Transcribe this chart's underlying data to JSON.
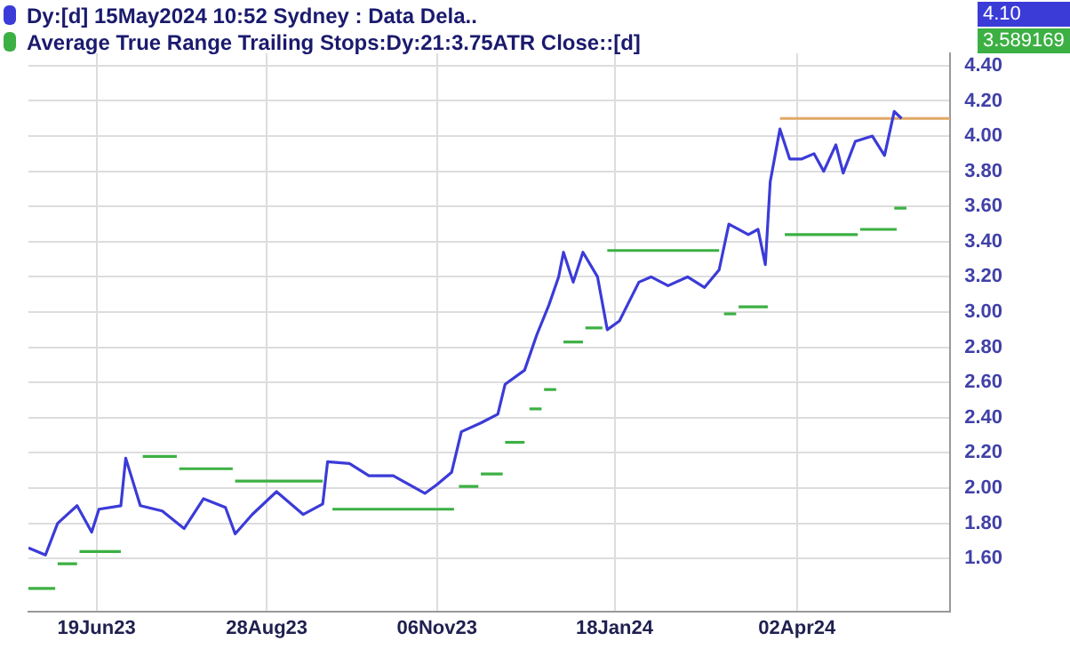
{
  "chart_data": {
    "type": "line",
    "legend": "top left",
    "grid": true,
    "marker": "none",
    "xlim": [
      "2023-05-22",
      "2024-06-04"
    ],
    "xticks": [
      {
        "value": "2023-06-19",
        "label": "19Jun23"
      },
      {
        "value": "2023-08-28",
        "label": "28Aug23"
      },
      {
        "value": "2023-11-06",
        "label": "06Nov23"
      },
      {
        "value": "2024-01-18",
        "label": "18Jan24"
      },
      {
        "value": "2024-04-02",
        "label": "02Apr24"
      }
    ],
    "ylim": [
      1.3,
      4.47
    ],
    "yticks": [
      {
        "value": 1.6,
        "label": "1.60"
      },
      {
        "value": 1.8,
        "label": "1.80"
      },
      {
        "value": 2.0,
        "label": "2.00"
      },
      {
        "value": 2.2,
        "label": "2.20"
      },
      {
        "value": 2.4,
        "label": "2.40"
      },
      {
        "value": 2.6,
        "label": "2.60"
      },
      {
        "value": 2.8,
        "label": "2.80"
      },
      {
        "value": 3.0,
        "label": "3.00"
      },
      {
        "value": 3.2,
        "label": "3.20"
      },
      {
        "value": 3.4,
        "label": "3.40"
      },
      {
        "value": 3.6,
        "label": "3.60"
      },
      {
        "value": 3.8,
        "label": "3.80"
      },
      {
        "value": 4.0,
        "label": "4.00"
      },
      {
        "value": 4.2,
        "label": "4.20"
      },
      {
        "value": 4.4,
        "label": "4.40"
      }
    ],
    "annotations": [
      "4.10",
      "3.589169"
    ],
    "series": [
      {
        "name": "Dy:[d]  15May2024 10:52 Sydney : Data Dela..",
        "color": "#3b3bd8",
        "x": [
          "2023-05-22",
          "2023-05-29",
          "2023-06-03",
          "2023-06-11",
          "2023-06-17",
          "2023-06-20",
          "2023-06-29",
          "2023-07-01",
          "2023-07-07",
          "2023-07-16",
          "2023-07-25",
          "2023-08-02",
          "2023-08-11",
          "2023-08-15",
          "2023-08-22",
          "2023-09-01",
          "2023-09-12",
          "2023-09-20",
          "2023-09-22",
          "2023-10-01",
          "2023-10-09",
          "2023-10-19",
          "2023-11-01",
          "2023-11-06",
          "2023-11-12",
          "2023-11-16",
          "2023-11-24",
          "2023-12-01",
          "2023-12-04",
          "2023-12-12",
          "2023-12-17",
          "2023-12-22",
          "2023-12-26",
          "2023-12-28",
          "2024-01-01",
          "2024-01-05",
          "2024-01-11",
          "2024-01-15",
          "2024-01-20",
          "2024-01-28",
          "2024-02-02",
          "2024-02-09",
          "2024-02-17",
          "2024-02-24",
          "2024-03-01",
          "2024-03-05",
          "2024-03-13",
          "2024-03-17",
          "2024-03-20",
          "2024-03-22",
          "2024-03-26",
          "2024-03-30",
          "2024-04-04",
          "2024-04-09",
          "2024-04-13",
          "2024-04-18",
          "2024-04-21",
          "2024-04-26",
          "2024-05-03",
          "2024-05-08",
          "2024-05-12",
          "2024-05-15"
        ],
        "values": [
          1.66,
          1.62,
          1.8,
          1.9,
          1.75,
          1.88,
          1.9,
          2.17,
          1.9,
          1.87,
          1.77,
          1.94,
          1.89,
          1.74,
          1.85,
          1.98,
          1.85,
          1.91,
          2.15,
          2.14,
          2.07,
          2.07,
          1.97,
          2.02,
          2.09,
          2.32,
          2.37,
          2.42,
          2.59,
          2.67,
          2.87,
          3.04,
          3.2,
          3.34,
          3.17,
          3.34,
          3.2,
          2.9,
          2.95,
          3.17,
          3.2,
          3.15,
          3.2,
          3.14,
          3.24,
          3.5,
          3.44,
          3.47,
          3.27,
          3.74,
          4.04,
          3.87,
          3.87,
          3.9,
          3.8,
          3.95,
          3.79,
          3.97,
          4.0,
          3.89,
          4.14,
          4.1
        ]
      },
      {
        "name": "Average True Range Trailing Stops:Dy:21:3.75ATR Close::[d]",
        "color": "#3cb043",
        "x": [
          "2023-05-22",
          "2023-06-02"
        ],
        "values": [
          1.43,
          1.43
        ]
      },
      {
        "color": "#3cb043",
        "x": [
          "2023-06-03",
          "2023-06-11"
        ],
        "values": [
          1.57,
          1.57
        ]
      },
      {
        "color": "#3cb043",
        "x": [
          "2023-06-12",
          "2023-06-29"
        ],
        "values": [
          1.64,
          1.64
        ]
      },
      {
        "color": "#3cb043",
        "x": [
          "2023-07-08",
          "2023-07-22"
        ],
        "values": [
          2.18,
          2.18
        ]
      },
      {
        "color": "#3cb043",
        "x": [
          "2023-07-23",
          "2023-08-14"
        ],
        "values": [
          2.11,
          2.11
        ]
      },
      {
        "color": "#3cb043",
        "x": [
          "2023-08-15",
          "2023-09-20"
        ],
        "values": [
          2.04,
          2.04
        ]
      },
      {
        "color": "#3cb043",
        "x": [
          "2023-09-24",
          "2023-11-13"
        ],
        "values": [
          1.88,
          1.88
        ]
      },
      {
        "color": "#3cb043",
        "x": [
          "2023-11-15",
          "2023-11-23"
        ],
        "values": [
          2.01,
          2.01
        ]
      },
      {
        "color": "#3cb043",
        "x": [
          "2023-11-24",
          "2023-12-03"
        ],
        "values": [
          2.08,
          2.08
        ]
      },
      {
        "color": "#3cb043",
        "x": [
          "2023-12-04",
          "2023-12-12"
        ],
        "values": [
          2.26,
          2.26
        ]
      },
      {
        "color": "#3cb043",
        "x": [
          "2023-12-14",
          "2023-12-19"
        ],
        "values": [
          2.45,
          2.45
        ]
      },
      {
        "color": "#3cb043",
        "x": [
          "2023-12-20",
          "2023-12-25"
        ],
        "values": [
          2.56,
          2.56
        ]
      },
      {
        "color": "#3cb043",
        "x": [
          "2023-12-28",
          "2024-01-05"
        ],
        "values": [
          2.83,
          2.83
        ]
      },
      {
        "color": "#3cb043",
        "x": [
          "2024-01-06",
          "2024-01-13"
        ],
        "values": [
          2.91,
          2.91
        ]
      },
      {
        "color": "#3cb043",
        "x": [
          "2024-01-15",
          "2024-03-01"
        ],
        "values": [
          3.35,
          3.35
        ]
      },
      {
        "color": "#3cb043",
        "x": [
          "2024-03-03",
          "2024-03-08"
        ],
        "values": [
          2.99,
          2.99
        ]
      },
      {
        "color": "#3cb043",
        "x": [
          "2024-03-09",
          "2024-03-21"
        ],
        "values": [
          3.03,
          3.03
        ]
      },
      {
        "color": "#3cb043",
        "x": [
          "2024-03-28",
          "2024-04-27"
        ],
        "values": [
          3.44,
          3.44
        ]
      },
      {
        "color": "#3cb043",
        "x": [
          "2024-04-28",
          "2024-05-13"
        ],
        "values": [
          3.47,
          3.47
        ]
      },
      {
        "color": "#3cb043",
        "x": [
          "2024-05-12",
          "2024-05-17"
        ],
        "values": [
          3.59,
          3.59
        ]
      },
      {
        "color": "#e0a866",
        "x": [
          "2024-03-26",
          "2024-06-04"
        ],
        "values": [
          4.1,
          4.1
        ]
      }
    ]
  }
}
